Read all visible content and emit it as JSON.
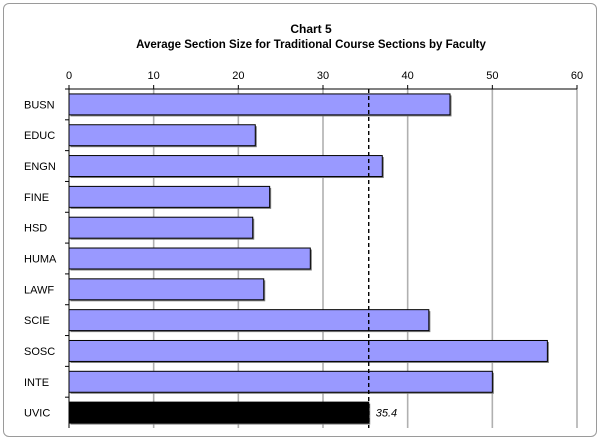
{
  "chart_data": {
    "type": "bar",
    "orientation": "horizontal",
    "title": "Chart 5",
    "subtitle": "Average Section Size for Traditional Course Sections by Faculty",
    "xlim": [
      0,
      60
    ],
    "xticks": [
      0,
      10,
      20,
      30,
      40,
      50,
      60
    ],
    "axis_position": "top",
    "grid": true,
    "categories": [
      "BUSN",
      "EDUC",
      "ENGN",
      "FINE",
      "HSD",
      "HUMA",
      "LAWF",
      "SCIE",
      "SOSC",
      "INTE",
      "UVIC"
    ],
    "values": [
      45.0,
      22.0,
      37.0,
      23.7,
      21.7,
      28.5,
      23.0,
      42.5,
      56.5,
      50.0,
      35.4
    ],
    "bar_colors": [
      "#9999ff",
      "#9999ff",
      "#9999ff",
      "#9999ff",
      "#9999ff",
      "#9999ff",
      "#9999ff",
      "#9999ff",
      "#9999ff",
      "#9999ff",
      "#000000"
    ],
    "reference_line": {
      "value": 35.4,
      "style": "dashed"
    },
    "data_labels": [
      {
        "category": "UVIC",
        "text": "35.4"
      }
    ]
  }
}
